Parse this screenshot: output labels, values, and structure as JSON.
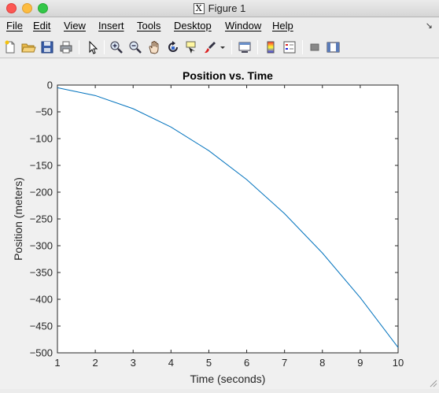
{
  "window": {
    "title": "Figure 1",
    "title_icon": "X"
  },
  "menu": {
    "items": [
      "File",
      "Edit",
      "View",
      "Insert",
      "Tools",
      "Desktop",
      "Window",
      "Help"
    ],
    "overflow_icon": "arrow-icon"
  },
  "toolbar": {
    "buttons": [
      "new-figure-icon",
      "open-icon",
      "save-icon",
      "print-icon",
      "edit-plot-arrow-icon",
      "zoom-in-icon",
      "zoom-out-icon",
      "pan-hand-icon",
      "rotate-3d-icon",
      "data-cursor-icon",
      "brush-icon",
      "brush-dropdown-icon",
      "link-plot-icon",
      "colorbar-icon",
      "legend-icon",
      "hide-plot-tools-icon",
      "show-plot-tools-icon"
    ]
  },
  "chart_data": {
    "type": "line",
    "title": "Position vs. Time",
    "xlabel": "Time (seconds)",
    "ylabel": "Position (meters)",
    "xlim": [
      1,
      10
    ],
    "ylim": [
      -500,
      0
    ],
    "xticks": [
      1,
      2,
      3,
      4,
      5,
      6,
      7,
      8,
      9,
      10
    ],
    "yticks": [
      0,
      -50,
      -100,
      -150,
      -200,
      -250,
      -300,
      -350,
      -400,
      -450,
      -500
    ],
    "grid": false,
    "series": [
      {
        "color": "#0072bd",
        "x": [
          1,
          2,
          3,
          4,
          5,
          6,
          7,
          8,
          9,
          10
        ],
        "y": [
          -4.9,
          -19.6,
          -44.1,
          -78.4,
          -122.5,
          -176.4,
          -240.1,
          -313.6,
          -396.9,
          -490
        ]
      }
    ]
  }
}
